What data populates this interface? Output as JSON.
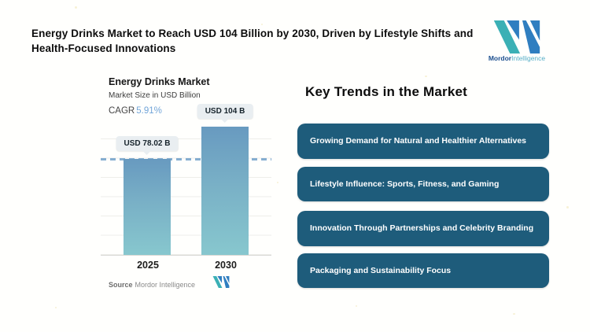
{
  "header": {
    "title": "Energy Drinks Market to Reach USD 104 Billion by 2030, Driven by Lifestyle Shifts and Health-Focused Innovations",
    "brand": {
      "name_bold": "Mordor",
      "name_light": "Intelligence"
    }
  },
  "chart": {
    "title": "Energy Drinks Market",
    "subtitle": "Market Size in USD Billion",
    "cagr_label": "CAGR",
    "cagr_value": "5.91%",
    "bars": [
      {
        "year": "2025",
        "label": "USD 78.02 B"
      },
      {
        "year": "2030",
        "label": "USD 104 B"
      }
    ],
    "source_label": "Source",
    "source_value": "Mordor Intelligence"
  },
  "trends": {
    "heading": "Key Trends in the Market",
    "items": [
      "Growing Demand for Natural and Healthier Alternatives",
      "Lifestyle Influence: Sports, Fitness, and Gaming",
      "Innovation Through Partnerships and Celebrity Branding",
      "Packaging and Sustainability Focus"
    ]
  },
  "chart_data": {
    "type": "bar",
    "title": "Energy Drinks Market",
    "subtitle": "Market Size in USD Billion",
    "cagr": "5.91%",
    "unit": "USD Billion",
    "categories": [
      "2025",
      "2030"
    ],
    "values": [
      78.02,
      104
    ],
    "data_labels": [
      "USD 78.02 B",
      "USD 104 B"
    ],
    "reference_line": 78.02,
    "ylim": [
      0,
      110
    ],
    "xlabel": "",
    "ylabel": "",
    "grid": true,
    "legend": false,
    "source": "Mordor Intelligence"
  },
  "colors": {
    "bar_gradient_top": "#689ac0",
    "bar_gradient_bottom": "#87c7ce",
    "reference_dash": "#86aed0",
    "trend_box": "#1e5c7b",
    "cagr_value": "#72a5d8",
    "brand_teal": "#3bb0b5",
    "brand_blue": "#2f7ec0",
    "label_chip": "#e9eef1"
  }
}
